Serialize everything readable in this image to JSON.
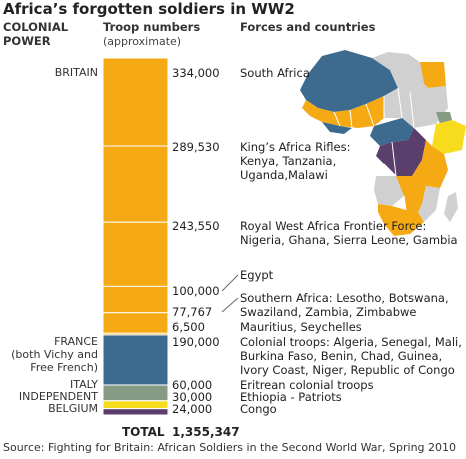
{
  "title": "Africa’s forgotten soldiers in WW2",
  "headers": {
    "power": [
      "COLONIAL",
      "POWER"
    ],
    "troops": "Troop numbers",
    "troops_sub": "(approximate)",
    "forces": "Forces and countries"
  },
  "chart_data": {
    "type": "bar",
    "orientation": "stacked-vertical",
    "title": "Africa’s forgotten soldiers in WW2",
    "unit": "troops (approximate)",
    "segments": [
      {
        "power": "BRITAIN",
        "value": 334000,
        "label": "334,000",
        "forces": [
          "South Africa"
        ],
        "color": "#f5a913"
      },
      {
        "power": "BRITAIN",
        "value": 289530,
        "label": "289,530",
        "forces": [
          "King’s Africa Rifles:",
          "Kenya, Tanzania,",
          "Uganda,Malawi"
        ],
        "color": "#f5a913"
      },
      {
        "power": "BRITAIN",
        "value": 243550,
        "label": "243,550",
        "forces": [
          "Royal West Africa Frontier Force:",
          "Nigeria, Ghana, Sierra Leone, Gambia"
        ],
        "color": "#f5a913"
      },
      {
        "power": "BRITAIN",
        "value": 100000,
        "label": "100,000",
        "forces": [
          "Egypt"
        ],
        "color": "#f5a913"
      },
      {
        "power": "BRITAIN",
        "value": 77767,
        "label": "77,767",
        "forces": [
          "Southern Africa: Lesotho, Botswana,",
          "Swaziland, Zambia, Zimbabwe"
        ],
        "color": "#f5a913"
      },
      {
        "power": "BRITAIN",
        "value": 6500,
        "label": "6,500",
        "forces": [
          "Mauritius, Seychelles"
        ],
        "color": "#f5a913"
      },
      {
        "power": "FRANCE",
        "value": 190000,
        "label": "190,000",
        "forces": [
          "Colonial troops: Algeria, Senegal, Mali,",
          "Burkina Faso, Benin, Chad, Guinea,",
          "Ivory Coast, Niger, Republic of Congo"
        ],
        "color": "#3d6b8f"
      },
      {
        "power": "ITALY",
        "value": 60000,
        "label": "60,000",
        "forces": [
          "Eritrean colonial troops"
        ],
        "color": "#869b83"
      },
      {
        "power": "INDEPENDENT",
        "value": 30000,
        "label": "30,000",
        "forces": [
          "Ethiopia - Patriots"
        ],
        "color": "#f7dc1e"
      },
      {
        "power": "BELGIUM",
        "value": 24000,
        "label": "24,000",
        "forces": [
          "Congo"
        ],
        "color": "#5a3f6d"
      }
    ],
    "powers": [
      {
        "name": [
          "BRITAIN"
        ]
      },
      {
        "name": [
          "FRANCE",
          "(both Vichy and",
          "Free French)"
        ]
      },
      {
        "name": [
          "ITALY"
        ]
      },
      {
        "name": [
          "INDEPENDENT"
        ]
      },
      {
        "name": [
          "BELGIUM"
        ]
      }
    ],
    "total_label": "TOTAL",
    "total_value": "1,355,347",
    "legend": "none"
  },
  "map": {
    "colors": {
      "britain": "#f5a913",
      "france": "#3d6b8f",
      "italy": "#869b83",
      "independent": "#f7dc1e",
      "belgium": "#5a3f6d",
      "other": "#d0d0d0"
    }
  },
  "source": "Source: Fighting for Britain: African Soldiers in the Second World War, Spring 2010"
}
